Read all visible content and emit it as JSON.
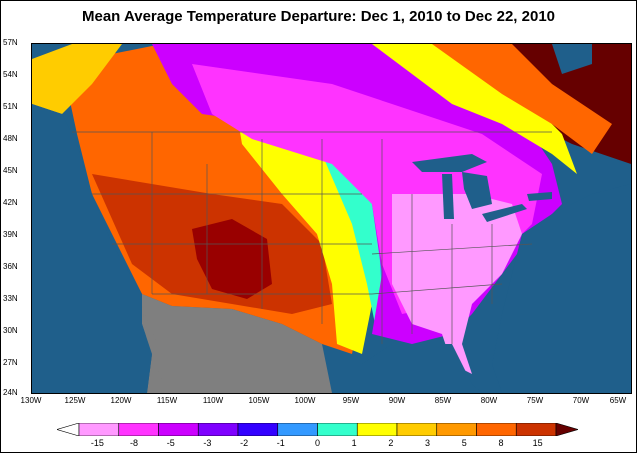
{
  "title": "Mean Average Temperature Departure: Dec 1, 2010 to Dec 22, 2010",
  "lat_labels": [
    "57N",
    "54N",
    "51N",
    "48N",
    "45N",
    "42N",
    "39N",
    "36N",
    "33N",
    "30N",
    "27N",
    "24N"
  ],
  "lon_labels": [
    "130W",
    "125W",
    "120W",
    "115W",
    "110W",
    "105W",
    "100W",
    "95W",
    "90W",
    "85W",
    "80W",
    "75W",
    "70W",
    "65W"
  ],
  "legend": {
    "labels": [
      "-15",
      "-8",
      "-5",
      "-3",
      "-2",
      "-1",
      "0",
      "1",
      "2",
      "3",
      "5",
      "8",
      "15"
    ],
    "colors": [
      "#ff99ff",
      "#ff33ff",
      "#cc00ff",
      "#7f00ff",
      "#3300ff",
      "#3399ff",
      "#33ffcc",
      "#ffff00",
      "#ffcc00",
      "#ff9900",
      "#ff6600",
      "#cc3300",
      "#990000",
      "#660000"
    ]
  },
  "colors": {
    "ocean": "#1f5f8b",
    "land_outside": "#7f7f7f",
    "lakes": "#1f5f8b"
  }
}
